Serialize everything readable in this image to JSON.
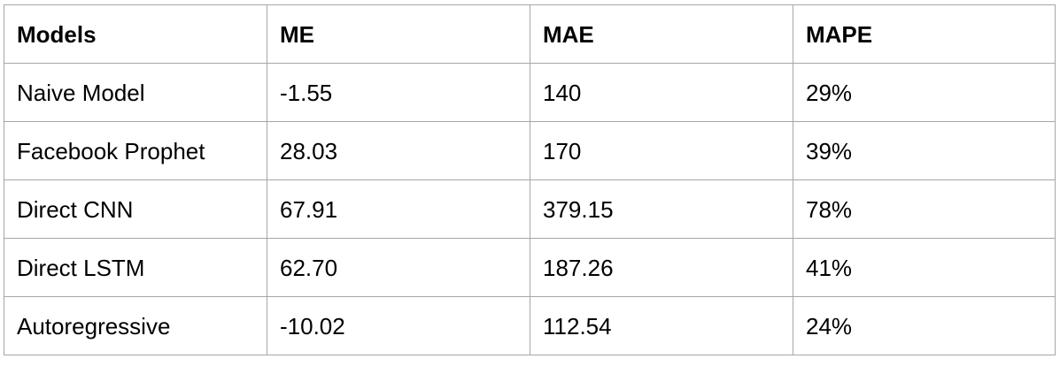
{
  "table": {
    "headers": [
      "Models",
      "ME",
      "MAE",
      "MAPE"
    ],
    "rows": [
      [
        "Naive Model",
        "-1.55",
        "140",
        "29%"
      ],
      [
        "Facebook Prophet",
        "28.03",
        "170",
        "39%"
      ],
      [
        "Direct CNN",
        "67.91",
        "379.15",
        "78%"
      ],
      [
        "Direct LSTM",
        "62.70",
        "187.26",
        "41%"
      ],
      [
        "Autoregressive",
        "-10.02",
        "112.54",
        "24%"
      ]
    ]
  }
}
